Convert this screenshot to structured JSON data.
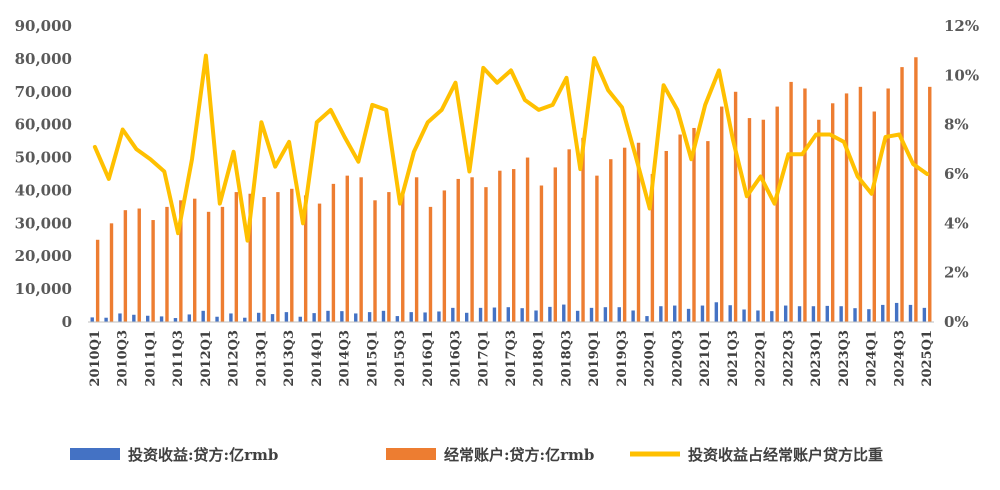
{
  "chart_data": {
    "type": "bar",
    "categories": [
      "2010Q1",
      "2010Q2",
      "2010Q3",
      "2010Q4",
      "2011Q1",
      "2011Q2",
      "2011Q3",
      "2011Q4",
      "2012Q1",
      "2012Q2",
      "2012Q3",
      "2012Q4",
      "2013Q1",
      "2013Q2",
      "2013Q3",
      "2013Q4",
      "2014Q1",
      "2014Q2",
      "2014Q3",
      "2014Q4",
      "2015Q1",
      "2015Q2",
      "2015Q3",
      "2015Q4",
      "2016Q1",
      "2016Q2",
      "2016Q3",
      "2016Q4",
      "2017Q1",
      "2017Q2",
      "2017Q3",
      "2017Q4",
      "2018Q1",
      "2018Q2",
      "2018Q3",
      "2018Q4",
      "2019Q1",
      "2019Q2",
      "2019Q3",
      "2019Q4",
      "2020Q1",
      "2020Q2",
      "2020Q3",
      "2020Q4",
      "2021Q1",
      "2021Q2",
      "2021Q3",
      "2021Q4",
      "2022Q1",
      "2022Q2",
      "2022Q3",
      "2022Q4",
      "2023Q1",
      "2023Q2",
      "2023Q3",
      "2023Q4",
      "2024Q1",
      "2024Q2",
      "2024Q3",
      "2024Q4",
      "2025Q1"
    ],
    "x_tick_labels": [
      "2010Q1",
      "2010Q3",
      "2011Q1",
      "2011Q3",
      "2012Q1",
      "2012Q3",
      "2013Q1",
      "2013Q3",
      "2014Q1",
      "2014Q3",
      "2015Q1",
      "2015Q3",
      "2016Q1",
      "2016Q3",
      "2017Q1",
      "2017Q3",
      "2018Q1",
      "2018Q3",
      "2019Q1",
      "2019Q3",
      "2020Q1",
      "2020Q3",
      "2021Q1",
      "2021Q3",
      "2022Q1",
      "2022Q3",
      "2023Q1",
      "2023Q3",
      "2024Q1",
      "2024Q3",
      "2025Q1"
    ],
    "series": [
      {
        "name": "投资收益:贷方:亿rmb",
        "type": "bar",
        "axis": "left",
        "color": "#4472C4",
        "values": [
          1400,
          1300,
          2600,
          2200,
          1900,
          1700,
          1200,
          2300,
          3400,
          1600,
          2600,
          1300,
          2800,
          2400,
          3000,
          1600,
          2700,
          3400,
          3300,
          2600,
          3000,
          3400,
          1800,
          3000,
          2900,
          3200,
          4300,
          2800,
          4300,
          4400,
          4500,
          4200,
          3500,
          4600,
          5300,
          3400,
          4300,
          4500,
          4500,
          3500,
          1800,
          4800,
          5000,
          4000,
          5000,
          6000,
          5100,
          3800,
          3500,
          3300,
          5000,
          4800,
          4800,
          4900,
          4800,
          4200,
          3900,
          5200,
          5800,
          5200,
          4300
        ]
      },
      {
        "name": "经常账户:贷方:亿rmb",
        "type": "bar",
        "axis": "left",
        "color": "#ED7D31",
        "values": [
          25000,
          30000,
          34000,
          34500,
          31000,
          35000,
          37000,
          37500,
          33500,
          35000,
          39500,
          39000,
          38000,
          39500,
          40500,
          38500,
          36000,
          42000,
          44500,
          44000,
          37000,
          39500,
          39000,
          44000,
          35000,
          40000,
          43500,
          44000,
          41000,
          46000,
          46500,
          50000,
          41500,
          47000,
          52500,
          56000,
          44500,
          49500,
          53000,
          54500,
          45000,
          52000,
          57000,
          59000,
          55000,
          65500,
          70000,
          62000,
          61500,
          65500,
          73000,
          71000,
          61500,
          66500,
          69500,
          71500,
          64000,
          71000,
          77500,
          80500,
          71500
        ]
      },
      {
        "name": "投资收益占经常账户贷方比重",
        "type": "line",
        "axis": "right",
        "color": "#FFC000",
        "values": [
          7.1,
          5.8,
          7.8,
          7.0,
          6.6,
          6.1,
          3.6,
          6.6,
          10.8,
          4.8,
          6.9,
          3.3,
          8.1,
          6.3,
          7.3,
          4.0,
          8.1,
          8.6,
          7.5,
          6.5,
          8.8,
          8.6,
          4.8,
          6.9,
          8.1,
          8.6,
          9.7,
          6.1,
          10.3,
          9.7,
          10.2,
          9.0,
          8.6,
          8.8,
          9.9,
          6.2,
          10.7,
          9.4,
          8.7,
          6.7,
          4.6,
          9.6,
          8.6,
          6.6,
          8.8,
          10.2,
          7.4,
          5.1,
          5.9,
          4.8,
          6.8,
          6.8,
          7.6,
          7.6,
          7.3,
          5.9,
          5.2,
          7.5,
          7.6,
          6.4,
          6.0
        ]
      }
    ],
    "y_left": {
      "ylim": [
        0,
        90000
      ],
      "ticks": [
        "0",
        "10,000",
        "20,000",
        "30,000",
        "40,000",
        "50,000",
        "60,000",
        "70,000",
        "80,000",
        "90,000"
      ]
    },
    "y_right": {
      "ylim": [
        0,
        12
      ],
      "ticks": [
        "0%",
        "2%",
        "4%",
        "6%",
        "8%",
        "10%",
        "12%"
      ]
    },
    "grid": false,
    "legend_position": "bottom"
  }
}
